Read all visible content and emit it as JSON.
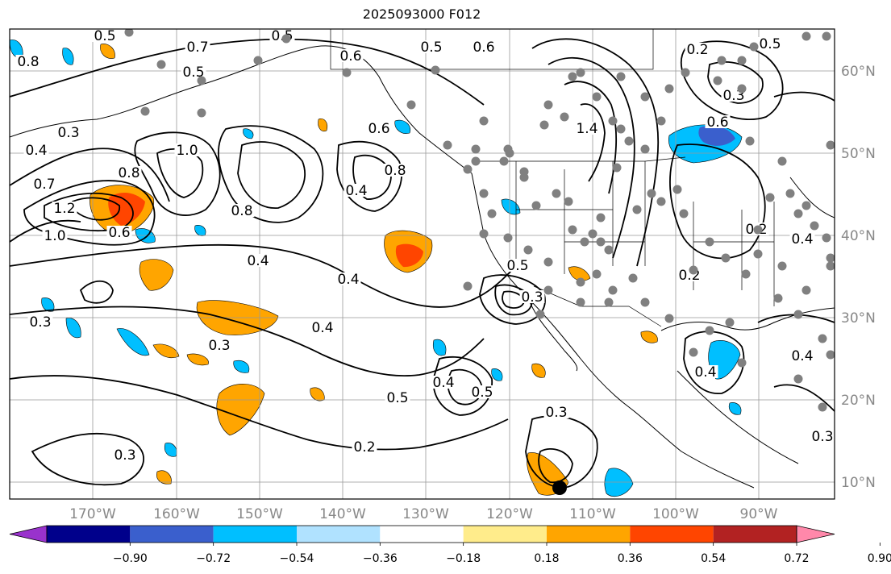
{
  "title": "2025093000 F012",
  "map": {
    "x_ticks": [
      "170°W",
      "160°W",
      "150°W",
      "140°W",
      "130°W",
      "120°W",
      "110°W",
      "100°W",
      "90°W"
    ],
    "y_ticks": [
      "60°N",
      "50°N",
      "40°N",
      "30°N",
      "20°N",
      "10°N"
    ],
    "grid": true,
    "contour_color": "#000000",
    "station_color": "#808080",
    "contour_labels": [
      "0.5",
      "0.7",
      "0.5",
      "0.6",
      "0.5",
      "0.8",
      "0.6",
      "0.5",
      "0.3",
      "0.4",
      "0.7",
      "1.2",
      "1.0",
      "0.8",
      "0.6",
      "1.0",
      "0.8",
      "0.4",
      "0.4",
      "0.6",
      "0.8",
      "0.4",
      "0.3",
      "0.3",
      "0.4",
      "0.5",
      "0.4",
      "0.5",
      "0.2",
      "0.3",
      "0.5",
      "0.3",
      "1.4",
      "0.3",
      "0.2",
      "0.6",
      "0.3",
      "0.5",
      "0.2",
      "0.4",
      "0.4",
      "0.4",
      "0.2",
      "0.3"
    ]
  },
  "colorbar": {
    "ticks": [
      "−0.90",
      "−0.72",
      "−0.54",
      "−0.36",
      "−0.18",
      "0.18",
      "0.36",
      "0.54",
      "0.72",
      "0.90"
    ],
    "colors": [
      "#9932cc",
      "#00008b",
      "#3a5fcd",
      "#00bfff",
      "#b0e2ff",
      "#ffffff",
      "#ffec8b",
      "#ffa500",
      "#ff4500",
      "#b22222",
      "#ff88aa"
    ]
  }
}
